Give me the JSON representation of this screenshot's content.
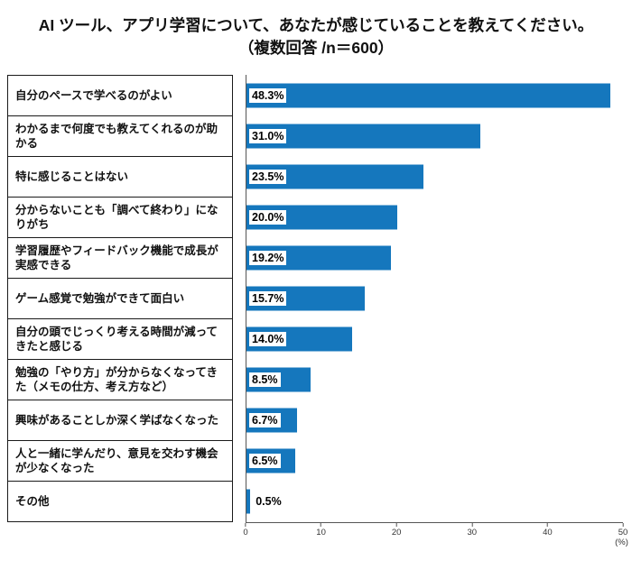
{
  "title": {
    "line1": "AI ツール、アプリ学習について、あなたが感じていることを教えてください。",
    "line2": "（複数回答 /n＝600）"
  },
  "chart_data": {
    "type": "bar",
    "orientation": "horizontal",
    "title": "AI ツール、アプリ学習について、あなたが感じていることを教えてください。（複数回答 /n＝600）",
    "categories": [
      "自分のペースで学べるのがよい",
      "わかるまで何度でも教えてくれるのが助かる",
      "特に感じることはない",
      "分からないことも「調べて終わり」になりがち",
      "学習履歴やフィードバック機能で成長が実感できる",
      "ゲーム感覚で勉強ができて面白い",
      "自分の頭でじっくり考える時間が減ってきたと感じる",
      "勉強の「やり方」が分からなくなってきた（メモの仕方、考え方など）",
      "興味があることしか深く学ばなくなった",
      "人と一緒に学んだり、意見を交わす機会が少なくなった",
      "その他"
    ],
    "values": [
      48.3,
      31.0,
      23.5,
      20.0,
      19.2,
      15.7,
      14.0,
      8.5,
      6.7,
      6.5,
      0.5
    ],
    "value_labels": [
      "48.3%",
      "31.0%",
      "23.5%",
      "20.0%",
      "19.2%",
      "15.7%",
      "14.0%",
      "8.5%",
      "6.7%",
      "6.5%",
      "0.5%"
    ],
    "xlim": [
      0,
      50
    ],
    "x_ticks": [
      "0",
      "10",
      "20",
      "30",
      "40",
      "50"
    ],
    "x_unit": "(%)",
    "bar_color": "#1577bd",
    "grid": false,
    "legend": "none"
  }
}
